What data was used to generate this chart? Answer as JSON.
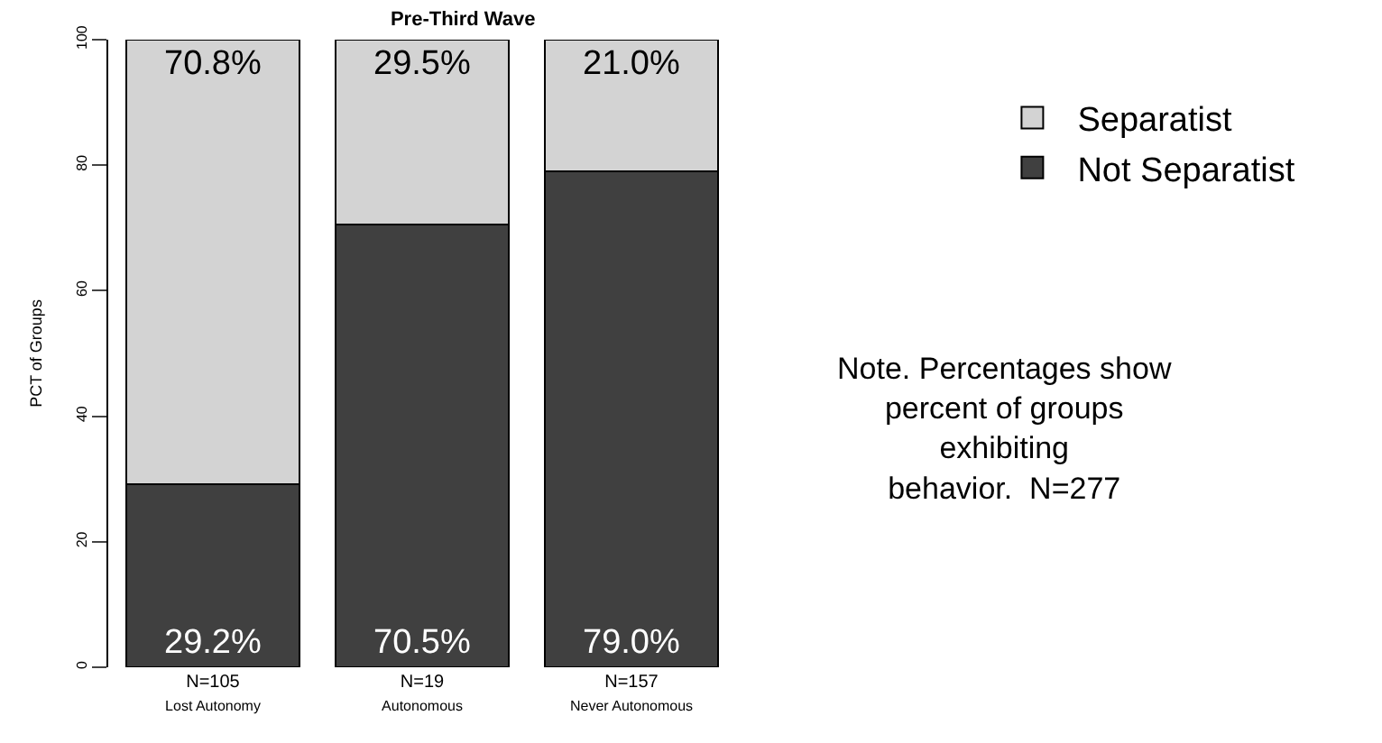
{
  "chart_data": {
    "type": "bar",
    "title": "Pre-Third Wave",
    "ylabel": "PCT of Groups",
    "categories": [
      "N=105\nLost Autonomy",
      "N=19\nAutonomous",
      "N=157\nNever Autonomous"
    ],
    "stacked": true,
    "series": [
      {
        "name": "Not Separatist",
        "color": "#404040",
        "values": [
          29.2,
          70.5,
          79.0
        ],
        "value_labels": [
          "29.2%",
          "70.5%",
          "79.0%"
        ]
      },
      {
        "name": "Separatist",
        "color": "#d3d3d3",
        "values": [
          70.8,
          29.5,
          21.0
        ],
        "value_labels": [
          "70.8%",
          "29.5%",
          "21.0%"
        ]
      }
    ],
    "ylim": [
      0,
      100
    ],
    "yticks": [
      0,
      20,
      40,
      60,
      80,
      100
    ],
    "legend": "top right",
    "annotations": [
      "Note. Percentages show\npercent of groups\nexhibiting\nbehavior.  N=277"
    ]
  }
}
